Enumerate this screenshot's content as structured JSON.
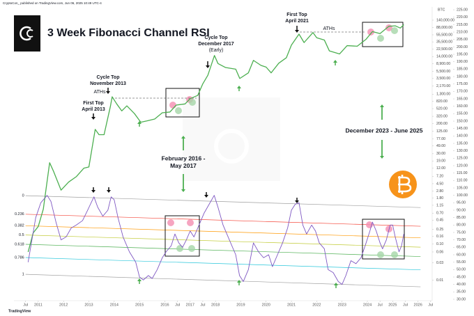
{
  "chart_data": {
    "type": "line",
    "title": "3 Week Fibonacci Channel RSI",
    "publisher": "CryptoCon_ published on TradingView.com, Jun 06, 2025 10:49 UTC-4",
    "footer": "TradingView",
    "axis_label": "BTC",
    "log_scale": true,
    "xlim": [
      2010.04,
      2026.56
    ],
    "xticks": [
      {
        "value": 2010.5,
        "label": "Jul"
      },
      2011,
      2012,
      2013,
      2014,
      2015,
      2016,
      {
        "value": 2016.5,
        "label": "Jul"
      },
      2017,
      {
        "value": 2017.5,
        "label": "Jul"
      },
      2018,
      2019,
      2020,
      2021,
      2022,
      2023,
      2024,
      {
        "value": 2024.5,
        "label": "Jul"
      },
      2025,
      {
        "value": 2025.5,
        "label": "Jul"
      },
      2026,
      {
        "value": 2026.5,
        "label": "Jul"
      }
    ],
    "ylim": [
      0.00275,
      323000
    ],
    "yticks": [
      {
        "value": 140000,
        "label": "140,000.00"
      },
      {
        "value": 88000,
        "label": "88,000.00"
      },
      {
        "value": 55500,
        "label": "55,500.00"
      },
      {
        "value": 35500,
        "label": "35,500.00"
      },
      {
        "value": 22500,
        "label": "22,500.00"
      },
      {
        "value": 14000,
        "label": "14,000.00"
      },
      {
        "value": 8900,
        "label": "8,900.00"
      },
      {
        "value": 5500,
        "label": "5,500.00"
      },
      {
        "value": 3500,
        "label": "3,500.00"
      },
      {
        "value": 2170,
        "label": "2,170.00"
      },
      {
        "value": 1300,
        "label": "1,300.00"
      },
      {
        "value": 820,
        "label": "820.00"
      },
      {
        "value": 520,
        "label": "520.00"
      },
      {
        "value": 320,
        "label": "320.00"
      },
      {
        "value": 200,
        "label": "200.00"
      },
      {
        "value": 125,
        "label": "125.00"
      },
      {
        "value": 77,
        "label": "77.00"
      },
      {
        "value": 49,
        "label": "49.00"
      },
      {
        "value": 30,
        "label": "30.00"
      },
      {
        "value": 19,
        "label": "19.00"
      },
      {
        "value": 12,
        "label": "12.00"
      },
      {
        "value": 7.2,
        "label": "7.20"
      },
      {
        "value": 4.5,
        "label": "4.50"
      },
      {
        "value": 2.8,
        "label": "2.80"
      },
      {
        "value": 1.8,
        "label": "1.80"
      },
      {
        "value": 1.15,
        "label": "1.15"
      },
      {
        "value": 0.7,
        "label": "0.70"
      },
      {
        "value": 0.45,
        "label": "0.45"
      },
      {
        "value": 0.25,
        "label": "0.25"
      },
      {
        "value": 0.16,
        "label": "0.16"
      },
      {
        "value": 0.1,
        "label": "0.10"
      },
      {
        "value": 0.06,
        "label": "0.06"
      },
      {
        "value": 0.03,
        "label": "0.03"
      },
      {
        "value": 0.01,
        "label": "0.01"
      }
    ],
    "y2lim": [
      29.06,
      226.9
    ],
    "y2ticks": [
      {
        "value": 225,
        "label": "225.00"
      },
      {
        "value": 220,
        "label": "220.00"
      },
      {
        "value": 215,
        "label": "215.00"
      },
      {
        "value": 210,
        "label": "210.00"
      },
      {
        "value": 205,
        "label": "205.00"
      },
      {
        "value": 200,
        "label": "200.00"
      },
      {
        "value": 195,
        "label": "195.00"
      },
      {
        "value": 190,
        "label": "190.00"
      },
      {
        "value": 185,
        "label": "185.00"
      },
      {
        "value": 180,
        "label": "180.00"
      },
      {
        "value": 175,
        "label": "175.00"
      },
      {
        "value": 170,
        "label": "170.00"
      },
      {
        "value": 165,
        "label": "165.00"
      },
      {
        "value": 160,
        "label": "160.00"
      },
      {
        "value": 155,
        "label": "155.00"
      },
      {
        "value": 150,
        "label": "150.00"
      },
      {
        "value": 145,
        "label": "145.00"
      },
      {
        "value": 140,
        "label": "140.00"
      },
      {
        "value": 135,
        "label": "135.00"
      },
      {
        "value": 130,
        "label": "130.00"
      },
      {
        "value": 125,
        "label": "125.00"
      },
      {
        "value": 120,
        "label": "120.00"
      },
      {
        "value": 115,
        "label": "115.00"
      },
      {
        "value": 110,
        "label": "110.00"
      },
      {
        "value": 105,
        "label": "105.00"
      },
      {
        "value": 100,
        "label": "100.00"
      },
      {
        "value": 95,
        "label": "95.00"
      },
      {
        "value": 90,
        "label": "90.00"
      },
      {
        "value": 85,
        "label": "85.00"
      },
      {
        "value": 80,
        "label": "80.00"
      },
      {
        "value": 75,
        "label": "75.00"
      },
      {
        "value": 70,
        "label": "70.00"
      },
      {
        "value": 65,
        "label": "65.00"
      },
      {
        "value": 60,
        "label": "60.00"
      },
      {
        "value": 55,
        "label": "55.00"
      },
      {
        "value": 50,
        "label": "50.00"
      },
      {
        "value": 45,
        "label": "45.00"
      },
      {
        "value": 40,
        "label": "40.00"
      },
      {
        "value": 35,
        "label": "35.00"
      },
      {
        "value": 30,
        "label": "30.00"
      }
    ],
    "series": [
      {
        "color": "#4caf50",
        "x": [
          2010.6,
          2010.8,
          2011.0,
          2011.2,
          2011.45,
          2011.6,
          2011.9,
          2012.2,
          2012.5,
          2012.8,
          2013.0,
          2013.25,
          2013.4,
          2013.6,
          2013.85,
          2013.92,
          2014.1,
          2014.3,
          2014.5,
          2014.8,
          2015.05,
          2015.3,
          2015.6,
          2015.9,
          2016.2,
          2016.45,
          2016.8,
          2017.0,
          2017.3,
          2017.5,
          2017.7,
          2017.96,
          2018.1,
          2018.4,
          2018.8,
          2018.96,
          2019.3,
          2019.5,
          2019.8,
          2020.0,
          2020.2,
          2020.5,
          2020.8,
          2021.0,
          2021.3,
          2021.5,
          2021.85,
          2022.0,
          2022.3,
          2022.5,
          2022.9,
          2023.2,
          2023.6,
          2023.95,
          2024.2,
          2024.5,
          2024.85,
          2025.1,
          2025.3,
          2025.44
        ],
        "values": [
          0.06,
          0.2,
          0.3,
          0.9,
          17,
          10,
          3,
          5,
          7,
          12,
          13,
          140,
          100,
          100,
          600,
          1100,
          700,
          450,
          620,
          380,
          220,
          240,
          270,
          400,
          420,
          650,
          700,
          980,
          1200,
          2500,
          4300,
          15000,
          9000,
          7000,
          6300,
          3500,
          5000,
          11000,
          8000,
          7200,
          5000,
          9200,
          13000,
          29000,
          58000,
          34000,
          64000,
          46000,
          40000,
          20000,
          16500,
          28000,
          27000,
          42000,
          68000,
          60000,
          95000,
          98000,
          85000,
          105000
        ]
      },
      {
        "color": "#7e57c2",
        "axis": "y2",
        "x": [
          2010.6,
          2010.75,
          2010.9,
          2011.1,
          2011.35,
          2011.5,
          2011.7,
          2011.9,
          2012.1,
          2012.3,
          2012.5,
          2012.75,
          2012.95,
          2013.2,
          2013.35,
          2013.55,
          2013.75,
          2013.88,
          2014.0,
          2014.15,
          2014.35,
          2014.6,
          2014.85,
          2015.0,
          2015.15,
          2015.35,
          2015.5,
          2015.7,
          2015.9,
          2016.05,
          2016.25,
          2016.4,
          2016.55,
          2016.7,
          2016.85,
          2017.0,
          2017.15,
          2017.35,
          2017.55,
          2017.75,
          2017.95,
          2018.1,
          2018.3,
          2018.55,
          2018.8,
          2018.95,
          2019.1,
          2019.3,
          2019.5,
          2019.7,
          2019.9,
          2020.1,
          2020.25,
          2020.45,
          2020.65,
          2020.85,
          2021.0,
          2021.15,
          2021.3,
          2021.45,
          2021.6,
          2021.8,
          2021.95,
          2022.1,
          2022.3,
          2022.45,
          2022.65,
          2022.85,
          2023.0,
          2023.15,
          2023.35,
          2023.55,
          2023.75,
          2023.95,
          2024.1,
          2024.2,
          2024.35,
          2024.5,
          2024.6,
          2024.75,
          2024.9,
          2025.0,
          2025.1,
          2025.25,
          2025.35,
          2025.44
        ],
        "values": [
          55,
          70,
          85,
          95,
          100,
          96,
          82,
          70,
          72,
          78,
          80,
          83,
          90,
          99,
          92,
          86,
          90,
          99,
          97,
          85,
          72,
          62,
          55,
          45,
          43,
          46,
          44,
          50,
          58,
          62,
          66,
          74,
          68,
          65,
          70,
          76,
          72,
          80,
          88,
          94,
          100,
          92,
          80,
          70,
          60,
          46,
          42,
          50,
          68,
          62,
          58,
          60,
          52,
          60,
          68,
          78,
          90,
          94,
          95,
          80,
          74,
          80,
          76,
          68,
          64,
          50,
          48,
          42,
          40,
          46,
          56,
          54,
          58,
          68,
          76,
          82,
          76,
          68,
          64,
          70,
          80,
          80,
          72,
          62,
          66,
          74
        ]
      }
    ],
    "fib_channel": {
      "x": [
        2010.5,
        2026.1
      ],
      "top": [
        99.8,
        91.8
      ],
      "bottom": [
        46.8,
        38.4
      ],
      "levels": [
        0,
        0.236,
        0.382,
        0.5,
        0.618,
        0.786,
        1
      ],
      "colors": [
        "#9e9e9e",
        "#f44336",
        "#ff9800",
        "#c0ca33",
        "#4caf50",
        "#26c6da",
        "#9e9e9e"
      ]
    },
    "annotations": [
      {
        "lines": [
          "First Top",
          "April 2013"
        ]
      },
      {
        "lines": [
          "Cycle Top",
          "November 2013"
        ]
      },
      {
        "lines": [
          "ATHs"
        ]
      },
      {
        "lines": [
          "Cycle Top",
          "December 2017",
          "(Early)"
        ]
      },
      {
        "lines": [
          "First Top",
          "April 2021"
        ]
      },
      {
        "lines": [
          "ATHs"
        ]
      },
      {
        "lines": [
          "February 2016 -",
          "May 2017"
        ]
      },
      {
        "lines": [
          "December 2023 - June 2025"
        ]
      }
    ]
  }
}
